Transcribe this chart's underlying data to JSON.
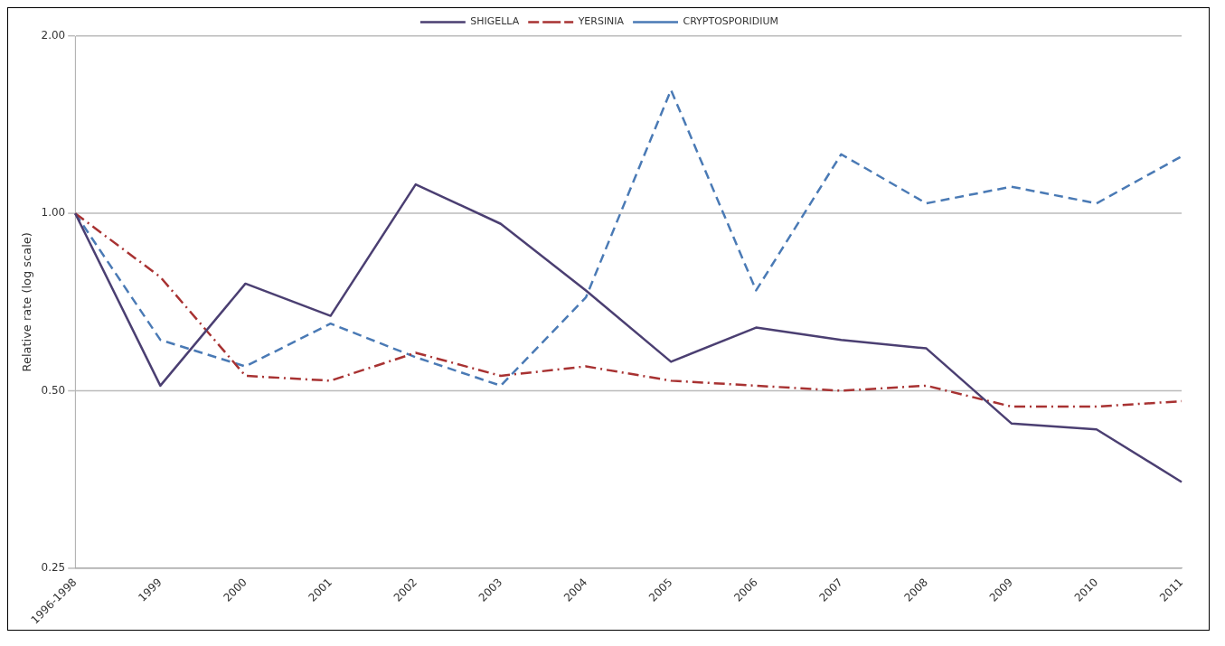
{
  "chart_data": {
    "type": "line",
    "ylabel": "Relative rate (log scale)",
    "log": "y",
    "grid": "y",
    "legend": "top",
    "marker": "none",
    "categories": [
      "1996-1998",
      "1999",
      "2000",
      "2001",
      "2002",
      "2003",
      "2004",
      "2005",
      "2006",
      "2007",
      "2008",
      "2009",
      "2010",
      "2011"
    ],
    "ylim": [
      0.25,
      2
    ],
    "yticks": [
      {
        "value": 0.25,
        "label": "0.25"
      },
      {
        "value": 0.5,
        "label": "0.50"
      },
      {
        "value": 1,
        "label": "1.00"
      },
      {
        "value": 2,
        "label": "2.00"
      }
    ],
    "series": [
      {
        "name": "SHIGELLA",
        "color": "#4b3f72",
        "line_style": "solid",
        "values": [
          1.0,
          0.51,
          0.76,
          0.67,
          1.12,
          0.96,
          0.74,
          0.56,
          0.64,
          0.61,
          0.59,
          0.44,
          0.43,
          0.35
        ]
      },
      {
        "name": "YERSINIA",
        "color": "#a83232",
        "line_style": "dashdot",
        "values": [
          1.0,
          0.78,
          0.53,
          0.52,
          0.58,
          0.53,
          0.55,
          0.52,
          0.51,
          0.5,
          0.51,
          0.47,
          0.47,
          0.48
        ]
      },
      {
        "name": "CRYPTOSPORIDIUM",
        "color": "#4a7ab5",
        "line_style": "dashed",
        "values": [
          1.0,
          0.61,
          0.55,
          0.65,
          0.57,
          0.51,
          0.72,
          1.62,
          0.74,
          1.26,
          1.04,
          1.11,
          1.04,
          1.25
        ]
      }
    ]
  }
}
